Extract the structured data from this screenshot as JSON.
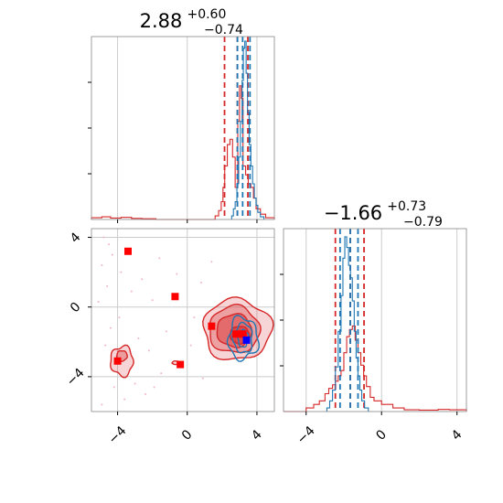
{
  "chart_data": [
    {
      "type": "histogram",
      "panel": "top-left",
      "title": {
        "value": "2.88",
        "plus": "+0.60",
        "minus": "−0.74"
      },
      "xlim": [
        -5.5,
        5.0
      ],
      "grid": true,
      "series": [
        {
          "color": "#d62728",
          "quantiles": [
            2.14,
            2.88,
            3.48
          ],
          "steps": [
            [
              -5.5,
              0.01
            ],
            [
              -4.9,
              0.015
            ],
            [
              -4.4,
              0.008
            ],
            [
              -3.8,
              0.012
            ],
            [
              -3.2,
              0.006
            ],
            [
              -2.6,
              0.004
            ],
            [
              -1.8,
              0.0
            ],
            [
              1.6,
              0.02
            ],
            [
              1.8,
              0.05
            ],
            [
              1.95,
              0.1
            ],
            [
              2.05,
              0.18
            ],
            [
              2.15,
              0.3
            ],
            [
              2.3,
              0.42
            ],
            [
              2.45,
              0.45
            ],
            [
              2.6,
              0.35
            ],
            [
              2.75,
              0.18
            ],
            [
              2.9,
              0.55
            ],
            [
              3.0,
              0.75
            ],
            [
              3.1,
              0.68
            ],
            [
              3.2,
              0.3
            ],
            [
              3.35,
              0.25
            ],
            [
              3.5,
              0.2
            ],
            [
              3.65,
              0.18
            ],
            [
              3.8,
              0.12
            ],
            [
              3.95,
              0.06
            ],
            [
              4.2,
              0.03
            ],
            [
              4.5,
              0.01
            ],
            [
              5.0,
              0.0
            ]
          ]
        },
        {
          "color": "#1f77b4",
          "quantiles": [
            2.88,
            3.18,
            3.6
          ],
          "steps": [
            [
              2.55,
              0.02
            ],
            [
              2.65,
              0.06
            ],
            [
              2.75,
              0.1
            ],
            [
              2.85,
              0.2
            ],
            [
              2.95,
              0.35
            ],
            [
              3.05,
              0.55
            ],
            [
              3.15,
              0.78
            ],
            [
              3.22,
              0.96
            ],
            [
              3.3,
              1.0
            ],
            [
              3.38,
              0.82
            ],
            [
              3.46,
              0.6
            ],
            [
              3.55,
              0.42
            ],
            [
              3.65,
              0.3
            ],
            [
              3.75,
              0.2
            ],
            [
              3.85,
              0.12
            ],
            [
              3.95,
              0.08
            ],
            [
              4.05,
              0.04
            ],
            [
              4.2,
              0.015
            ],
            [
              4.4,
              0.0
            ]
          ]
        }
      ]
    },
    {
      "type": "histogram",
      "panel": "bottom-right",
      "title": {
        "value": "−1.66",
        "plus": "+0.73",
        "minus": "−0.79"
      },
      "xlim": [
        -5.2,
        4.5
      ],
      "xticks": [
        -4,
        0,
        4
      ],
      "grid": true,
      "series": [
        {
          "color": "#d62728",
          "quantiles": [
            -2.45,
            -1.66,
            -0.93
          ],
          "steps": [
            [
              -5.2,
              0.0
            ],
            [
              -4.0,
              0.02
            ],
            [
              -3.6,
              0.04
            ],
            [
              -3.3,
              0.06
            ],
            [
              -3.0,
              0.1
            ],
            [
              -2.8,
              0.13
            ],
            [
              -2.6,
              0.15
            ],
            [
              -2.45,
              0.17
            ],
            [
              -2.3,
              0.2
            ],
            [
              -2.15,
              0.23
            ],
            [
              -2.0,
              0.33
            ],
            [
              -1.85,
              0.42
            ],
            [
              -1.7,
              0.46
            ],
            [
              -1.55,
              0.48
            ],
            [
              -1.4,
              0.4
            ],
            [
              -1.25,
              0.33
            ],
            [
              -1.1,
              0.26
            ],
            [
              -0.95,
              0.2
            ],
            [
              -0.8,
              0.14
            ],
            [
              -0.6,
              0.08
            ],
            [
              -0.4,
              0.06
            ],
            [
              0.0,
              0.04
            ],
            [
              0.6,
              0.02
            ],
            [
              1.2,
              0.01
            ],
            [
              2.0,
              0.008
            ],
            [
              3.0,
              0.012
            ],
            [
              3.6,
              0.01
            ],
            [
              4.5,
              0.0
            ]
          ]
        },
        {
          "color": "#1f77b4",
          "quantiles": [
            -2.2,
            -1.66,
            -1.25
          ],
          "steps": [
            [
              -2.9,
              0.02
            ],
            [
              -2.75,
              0.06
            ],
            [
              -2.6,
              0.12
            ],
            [
              -2.45,
              0.25
            ],
            [
              -2.3,
              0.45
            ],
            [
              -2.15,
              0.65
            ],
            [
              -2.05,
              0.86
            ],
            [
              -1.95,
              0.98
            ],
            [
              -1.85,
              0.92
            ],
            [
              -1.75,
              0.82
            ],
            [
              -1.65,
              0.75
            ],
            [
              -1.55,
              0.62
            ],
            [
              -1.45,
              0.45
            ],
            [
              -1.35,
              0.3
            ],
            [
              -1.25,
              0.2
            ],
            [
              -1.15,
              0.12
            ],
            [
              -1.05,
              0.06
            ],
            [
              -0.9,
              0.02
            ],
            [
              -0.7,
              0.0
            ]
          ]
        }
      ]
    },
    {
      "type": "scatter",
      "panel": "bottom-left",
      "xlim": [
        -5.5,
        5.0
      ],
      "ylim": [
        -6.0,
        4.5
      ],
      "xticks": [
        -4,
        0,
        4
      ],
      "yticks": [
        -4,
        0,
        4
      ],
      "grid": true,
      "red_squares": [
        [
          -3.4,
          3.2
        ],
        [
          -0.7,
          0.6
        ],
        [
          1.4,
          -1.1
        ],
        [
          2.8,
          -1.55
        ],
        [
          -4.0,
          -3.1
        ],
        [
          -0.4,
          -3.3
        ],
        [
          3.2,
          -1.55
        ]
      ],
      "blue_square": [
        3.4,
        -1.9
      ],
      "contours": {
        "red": [
          {
            "cx": 2.85,
            "cy": -1.3,
            "rx": 1.95,
            "ry": 1.75,
            "opacity": 0.35,
            "wobble": 0.07
          },
          {
            "cx": 2.7,
            "cy": -1.3,
            "rx": 1.45,
            "ry": 1.35,
            "opacity": 0.55,
            "wobble": 0.06
          },
          {
            "cx": 2.7,
            "cy": -1.35,
            "rx": 1.0,
            "ry": 0.95,
            "opacity": 0.8,
            "wobble": 0.05
          },
          {
            "cx": 3.0,
            "cy": -1.6,
            "rx": 0.55,
            "ry": 0.5,
            "opacity": 0.95,
            "wobble": 0.04
          }
        ],
        "red_small": [
          {
            "cx": -3.75,
            "cy": -3.1,
            "rx": 0.65,
            "ry": 0.85,
            "opacity": 0.35,
            "wobble": 0.1
          },
          {
            "cx": -3.75,
            "cy": -2.8,
            "rx": 0.3,
            "ry": 0.3,
            "opacity": 0.6,
            "wobble": 0.05
          },
          {
            "cx": -0.65,
            "cy": -3.2,
            "rx": 0.22,
            "ry": 0.1,
            "opacity": 0.35,
            "wobble": 0.05
          }
        ],
        "blue": [
          {
            "cx": 3.2,
            "cy": -1.8,
            "rx": 0.85,
            "ry": 1.2,
            "wobble": 0.12
          },
          {
            "cx": 3.2,
            "cy": -1.8,
            "rx": 0.55,
            "ry": 0.85,
            "wobble": 0.1
          },
          {
            "cx": 3.2,
            "cy": -1.8,
            "rx": 0.3,
            "ry": 0.5,
            "wobble": 0.08
          }
        ]
      },
      "scatter_points": [
        [
          -4.8,
          4.0
        ],
        [
          -4.5,
          3.6
        ],
        [
          -4.3,
          3.0
        ],
        [
          -4.9,
          2.4
        ],
        [
          -3.8,
          2.0
        ],
        [
          -4.6,
          1.2
        ],
        [
          -3.2,
          0.9
        ],
        [
          -2.6,
          1.6
        ],
        [
          -2.0,
          0.4
        ],
        [
          -1.6,
          2.8
        ],
        [
          -3.9,
          -0.6
        ],
        [
          -4.4,
          -1.2
        ],
        [
          -2.8,
          -1.8
        ],
        [
          -2.2,
          -2.5
        ],
        [
          -4.7,
          -2.2
        ],
        [
          -3.0,
          -4.4
        ],
        [
          -4.2,
          -4.6
        ],
        [
          -1.5,
          -3.8
        ],
        [
          -1.2,
          -1.4
        ],
        [
          0.4,
          -0.6
        ],
        [
          -0.6,
          1.9
        ],
        [
          0.8,
          1.4
        ],
        [
          0.2,
          -2.2
        ],
        [
          -2.4,
          -5.0
        ],
        [
          -3.6,
          -5.3
        ],
        [
          -4.9,
          -5.6
        ],
        [
          -1.9,
          -4.6
        ],
        [
          0.9,
          -4.1
        ],
        [
          1.4,
          2.6
        ],
        [
          -5.1,
          0.3
        ]
      ]
    }
  ]
}
